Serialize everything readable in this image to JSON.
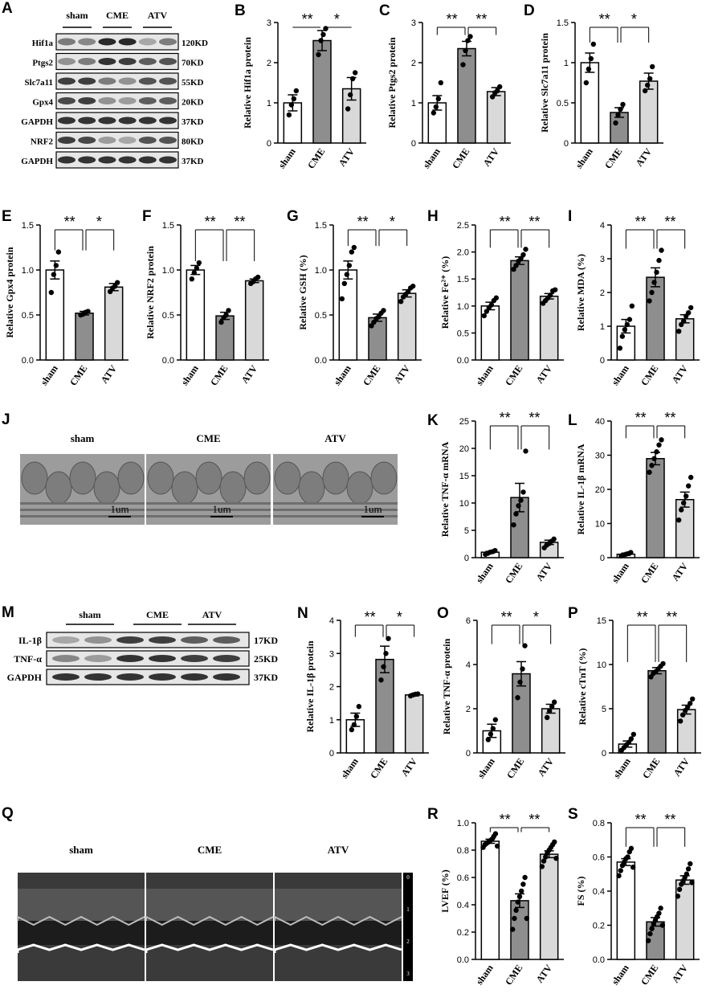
{
  "panels": {
    "A": {
      "letter": "A",
      "groups": [
        "sham",
        "CME",
        "ATV"
      ],
      "bands": [
        {
          "name": "Hif1a",
          "kd": "120KD"
        },
        {
          "name": "Ptgs2",
          "kd": "70KD"
        },
        {
          "name": "Slc7a11",
          "kd": "55KD"
        },
        {
          "name": "Gpx4",
          "kd": "20KD"
        },
        {
          "name": "GAPDH",
          "kd": "37KD"
        },
        {
          "name": "NRF2",
          "kd": "80KD"
        },
        {
          "name": "GAPDH",
          "kd": "37KD"
        }
      ]
    },
    "J": {
      "letter": "J",
      "images": [
        "sham",
        "CME",
        "ATV"
      ],
      "scale": "1um"
    },
    "M": {
      "letter": "M",
      "groups": [
        "sham",
        "CME",
        "ATV"
      ],
      "bands": [
        {
          "name": "IL-1β",
          "kd": "17KD"
        },
        {
          "name": "TNF-α",
          "kd": "25KD"
        },
        {
          "name": "GAPDH",
          "kd": "37KD"
        }
      ]
    },
    "Q": {
      "letter": "Q",
      "images": [
        "sham",
        "CME",
        "ATV"
      ],
      "scale_ticks": [
        "0",
        "1",
        "2",
        "3"
      ]
    }
  },
  "chart_data": [
    {
      "id": "B",
      "letter": "B",
      "type": "bar",
      "categories": [
        "sham",
        "CME",
        "ATV"
      ],
      "values": [
        1.0,
        2.55,
        1.35
      ],
      "errors": [
        0.2,
        0.25,
        0.28
      ],
      "points": [
        [
          0.7,
          0.95,
          1.1,
          1.3
        ],
        [
          2.2,
          2.55,
          2.7,
          2.85
        ],
        [
          0.85,
          1.2,
          1.6,
          1.75
        ]
      ],
      "ylabel": "Relative Hif1a protein",
      "ylim": [
        0,
        3
      ],
      "ticks": [
        0,
        1,
        2,
        3
      ],
      "tick_labels": [
        "0",
        "1",
        "2",
        "3"
      ],
      "sig": [
        {
          "from": 0,
          "to": 1,
          "label": "**"
        },
        {
          "from": 1,
          "to": 2,
          "label": "*"
        }
      ]
    },
    {
      "id": "C",
      "letter": "C",
      "type": "bar",
      "categories": [
        "sham",
        "CME",
        "ATV"
      ],
      "values": [
        1.0,
        2.35,
        1.28
      ],
      "errors": [
        0.18,
        0.18,
        0.1
      ],
      "points": [
        [
          0.75,
          0.9,
          1.1,
          1.5
        ],
        [
          1.95,
          2.3,
          2.55,
          2.65
        ],
        [
          1.15,
          1.25,
          1.3,
          1.4
        ]
      ],
      "ylabel": "Relative Ptgs2 protein",
      "ylim": [
        0,
        3
      ],
      "ticks": [
        0,
        1,
        2,
        3
      ],
      "tick_labels": [
        "0",
        "1",
        "2",
        "3"
      ],
      "sig": [
        {
          "from": 0,
          "to": 1,
          "label": "**"
        },
        {
          "from": 1,
          "to": 2,
          "label": "**"
        }
      ]
    },
    {
      "id": "D",
      "letter": "D",
      "type": "bar",
      "categories": [
        "sham",
        "CME",
        "ATV"
      ],
      "values": [
        1.0,
        0.38,
        0.77
      ],
      "errors": [
        0.12,
        0.06,
        0.1
      ],
      "points": [
        [
          0.75,
          0.92,
          1.05,
          1.23
        ],
        [
          0.25,
          0.35,
          0.42,
          0.48
        ],
        [
          0.65,
          0.72,
          0.8,
          0.95
        ]
      ],
      "ylabel": "Relative Slc7a11 protein",
      "ylim": [
        0,
        1.5
      ],
      "ticks": [
        0,
        0.5,
        1,
        1.5
      ],
      "tick_labels": [
        "0",
        "0.5",
        "1",
        "1.5"
      ],
      "sig": [
        {
          "from": 0,
          "to": 1,
          "label": "**"
        },
        {
          "from": 1,
          "to": 2,
          "label": "*"
        }
      ]
    },
    {
      "id": "E",
      "letter": "E",
      "type": "bar",
      "categories": [
        "sham",
        "CME",
        "ATV"
      ],
      "values": [
        1.0,
        0.52,
        0.81
      ],
      "errors": [
        0.1,
        0.02,
        0.04
      ],
      "points": [
        [
          0.75,
          0.95,
          1.05,
          1.2
        ],
        [
          0.5,
          0.51,
          0.53,
          0.54
        ],
        [
          0.76,
          0.8,
          0.82,
          0.86
        ]
      ],
      "ylabel": "Relative Gpx4 protein",
      "ylim": [
        0,
        1.5
      ],
      "ticks": [
        0,
        0.5,
        1,
        1.5
      ],
      "tick_labels": [
        "0.0",
        "0.5",
        "1.0",
        "1.5"
      ],
      "sig": [
        {
          "from": 0,
          "to": 1,
          "label": "**"
        },
        {
          "from": 1,
          "to": 2,
          "label": "*"
        }
      ]
    },
    {
      "id": "F",
      "letter": "F",
      "type": "bar",
      "categories": [
        "sham",
        "CME",
        "ATV"
      ],
      "values": [
        1.0,
        0.49,
        0.88
      ],
      "errors": [
        0.05,
        0.04,
        0.02
      ],
      "points": [
        [
          0.9,
          0.97,
          1.02,
          1.08
        ],
        [
          0.42,
          0.47,
          0.5,
          0.55
        ],
        [
          0.85,
          0.87,
          0.9,
          0.92
        ]
      ],
      "ylabel": "Relative NRF2 protein",
      "ylim": [
        0,
        1.5
      ],
      "ticks": [
        0,
        0.5,
        1,
        1.5
      ],
      "tick_labels": [
        "0.0",
        "0.5",
        "1.0",
        "1.5"
      ],
      "sig": [
        {
          "from": 0,
          "to": 1,
          "label": "**"
        },
        {
          "from": 1,
          "to": 2,
          "label": "**"
        }
      ]
    },
    {
      "id": "G",
      "letter": "G",
      "type": "bar",
      "categories": [
        "sham",
        "CME",
        "ATV"
      ],
      "values": [
        1.0,
        0.47,
        0.74
      ],
      "errors": [
        0.1,
        0.04,
        0.04
      ],
      "points": [
        [
          0.68,
          0.85,
          0.95,
          1.05,
          1.2,
          1.25
        ],
        [
          0.38,
          0.42,
          0.46,
          0.48,
          0.52,
          0.55
        ],
        [
          0.65,
          0.7,
          0.73,
          0.76,
          0.8,
          0.82
        ]
      ],
      "ylabel": "Relative GSH (%)",
      "ylim": [
        0,
        1.5
      ],
      "ticks": [
        0,
        0.5,
        1,
        1.5
      ],
      "tick_labels": [
        "0.0",
        "0.5",
        "1.0",
        "1.5"
      ],
      "sig": [
        {
          "from": 0,
          "to": 1,
          "label": "**"
        },
        {
          "from": 1,
          "to": 2,
          "label": "*"
        }
      ]
    },
    {
      "id": "H",
      "letter": "H",
      "type": "bar",
      "categories": [
        "sham",
        "CME",
        "ATV"
      ],
      "values": [
        1.0,
        1.84,
        1.18
      ],
      "errors": [
        0.07,
        0.07,
        0.05
      ],
      "points": [
        [
          0.82,
          0.9,
          0.97,
          1.02,
          1.1,
          1.15
        ],
        [
          1.68,
          1.75,
          1.83,
          1.88,
          1.95,
          2.05
        ],
        [
          1.05,
          1.1,
          1.15,
          1.2,
          1.28,
          1.3
        ]
      ],
      "ylabel": "Relative Fe²⁺ (%)",
      "ylim": [
        0,
        2.5
      ],
      "ticks": [
        0,
        0.5,
        1,
        1.5,
        2,
        2.5
      ],
      "tick_labels": [
        "0.0",
        "0.5",
        "1.0",
        "1.5",
        "2.0",
        "2.5"
      ],
      "sig": [
        {
          "from": 0,
          "to": 1,
          "label": "**"
        },
        {
          "from": 1,
          "to": 2,
          "label": "**"
        }
      ]
    },
    {
      "id": "I",
      "letter": "I",
      "type": "bar",
      "categories": [
        "sham",
        "CME",
        "ATV"
      ],
      "values": [
        1.0,
        2.45,
        1.22
      ],
      "errors": [
        0.2,
        0.28,
        0.12
      ],
      "points": [
        [
          0.35,
          0.7,
          0.9,
          1.05,
          1.2,
          1.6
        ],
        [
          1.75,
          2.0,
          2.3,
          2.6,
          2.95,
          3.25
        ],
        [
          0.85,
          1.05,
          1.15,
          1.3,
          1.4,
          1.55
        ]
      ],
      "ylabel": "Relative MDA (%)",
      "ylim": [
        0,
        4
      ],
      "ticks": [
        0,
        1,
        2,
        3,
        4
      ],
      "tick_labels": [
        "0",
        "1",
        "2",
        "3",
        "4"
      ],
      "sig": [
        {
          "from": 0,
          "to": 1,
          "label": "**"
        },
        {
          "from": 1,
          "to": 2,
          "label": "**"
        }
      ]
    },
    {
      "id": "K",
      "letter": "K",
      "type": "bar",
      "categories": [
        "sham",
        "CME",
        "ATV"
      ],
      "values": [
        1.0,
        11.0,
        2.8
      ],
      "errors": [
        0.15,
        2.6,
        0.4
      ],
      "points": [
        [
          0.6,
          0.8,
          1.0,
          1.1,
          1.3
        ],
        [
          6.0,
          8.0,
          9.5,
          10.5,
          12.0,
          19.5
        ],
        [
          1.8,
          2.3,
          2.6,
          3.0,
          3.4
        ]
      ],
      "ylabel": "Relative TNF-α mRNA",
      "ylim": [
        0,
        25
      ],
      "ticks": [
        0,
        5,
        10,
        15,
        20,
        25
      ],
      "tick_labels": [
        "0",
        "5",
        "10",
        "15",
        "20",
        "25"
      ],
      "sig": [
        {
          "from": 0,
          "to": 1,
          "label": "**"
        },
        {
          "from": 1,
          "to": 2,
          "label": "**"
        }
      ]
    },
    {
      "id": "L",
      "letter": "L",
      "type": "bar",
      "categories": [
        "sham",
        "CME",
        "ATV"
      ],
      "values": [
        1.0,
        29.0,
        17.0
      ],
      "errors": [
        0.3,
        1.8,
        2.2
      ],
      "points": [
        [
          0.5,
          0.8,
          1.0,
          1.2,
          1.5
        ],
        [
          25.0,
          27.0,
          29.0,
          31.0,
          33.0,
          34.5
        ],
        [
          11.0,
          14.0,
          16.0,
          18.0,
          21.0,
          23.5
        ]
      ],
      "ylabel": "Relative IL-1β mRNA",
      "ylim": [
        0,
        40
      ],
      "ticks": [
        0,
        10,
        20,
        30,
        40
      ],
      "tick_labels": [
        "0",
        "10",
        "20",
        "30",
        "40"
      ],
      "sig": [
        {
          "from": 0,
          "to": 1,
          "label": "**"
        },
        {
          "from": 1,
          "to": 2,
          "label": "**"
        }
      ]
    },
    {
      "id": "N",
      "letter": "N",
      "type": "bar",
      "categories": [
        "sham",
        "CME",
        "ATV"
      ],
      "values": [
        1.0,
        2.82,
        1.75
      ],
      "errors": [
        0.2,
        0.4,
        0.03
      ],
      "points": [
        [
          0.7,
          0.85,
          1.1,
          1.4
        ],
        [
          2.2,
          2.6,
          3.0,
          3.45
        ],
        [
          1.72,
          1.75,
          1.77,
          1.78
        ]
      ],
      "ylabel": "Relative IL-1β protein",
      "ylim": [
        0,
        4
      ],
      "ticks": [
        0,
        1,
        2,
        3,
        4
      ],
      "tick_labels": [
        "0",
        "1",
        "2",
        "3",
        "4"
      ],
      "sig": [
        {
          "from": 0,
          "to": 1,
          "label": "**"
        },
        {
          "from": 1,
          "to": 2,
          "label": "*"
        }
      ]
    },
    {
      "id": "O",
      "letter": "O",
      "type": "bar",
      "categories": [
        "sham",
        "CME",
        "ATV"
      ],
      "values": [
        1.0,
        3.58,
        2.0
      ],
      "errors": [
        0.3,
        0.55,
        0.2
      ],
      "points": [
        [
          0.6,
          0.85,
          1.1,
          1.5
        ],
        [
          2.5,
          3.2,
          3.8,
          4.85
        ],
        [
          1.6,
          1.9,
          2.1,
          2.3
        ]
      ],
      "ylabel": "Relative TNF-α protein",
      "ylim": [
        0,
        6
      ],
      "ticks": [
        0,
        2,
        4,
        6
      ],
      "tick_labels": [
        "0",
        "2",
        "4",
        "6"
      ],
      "sig": [
        {
          "from": 0,
          "to": 1,
          "label": "**"
        },
        {
          "from": 1,
          "to": 2,
          "label": "*"
        }
      ]
    },
    {
      "id": "P",
      "letter": "P",
      "type": "bar",
      "categories": [
        "sham",
        "CME",
        "ATV"
      ],
      "values": [
        1.0,
        9.3,
        4.9
      ],
      "errors": [
        0.35,
        0.35,
        0.5
      ],
      "points": [
        [
          0.3,
          0.6,
          0.9,
          1.2,
          1.6,
          2.1
        ],
        [
          8.6,
          9.0,
          9.2,
          9.5,
          9.8,
          10.1
        ],
        [
          3.6,
          4.3,
          4.8,
          5.2,
          5.6,
          6.1
        ]
      ],
      "ylabel": "Relative cTnT (%)",
      "ylim": [
        0,
        15
      ],
      "ticks": [
        0,
        5,
        10,
        15
      ],
      "tick_labels": [
        "0",
        "5",
        "10",
        "15"
      ],
      "sig": [
        {
          "from": 0,
          "to": 1,
          "label": "**"
        },
        {
          "from": 1,
          "to": 2,
          "label": "**"
        }
      ]
    },
    {
      "id": "R",
      "letter": "R",
      "type": "bar",
      "categories": [
        "sham",
        "CME",
        "ATV"
      ],
      "values": [
        0.865,
        0.43,
        0.77
      ],
      "errors": [
        0.015,
        0.05,
        0.025
      ],
      "points": [
        [
          0.82,
          0.84,
          0.85,
          0.86,
          0.87,
          0.88,
          0.9,
          0.92,
          0.83
        ],
        [
          0.22,
          0.3,
          0.36,
          0.42,
          0.46,
          0.5,
          0.55,
          0.6,
          0.3
        ],
        [
          0.68,
          0.72,
          0.75,
          0.78,
          0.8,
          0.82,
          0.84,
          0.86,
          0.74
        ]
      ],
      "ylabel": "LVEF (%)",
      "ylim": [
        0,
        1.0
      ],
      "ticks": [
        0,
        0.2,
        0.4,
        0.6,
        0.8,
        1.0
      ],
      "tick_labels": [
        "0.0",
        "0.2",
        "0.4",
        "0.6",
        "0.8",
        "1.0"
      ],
      "sig": [
        {
          "from": 0,
          "to": 1,
          "label": "**"
        },
        {
          "from": 1,
          "to": 2,
          "label": "**"
        }
      ]
    },
    {
      "id": "S",
      "letter": "S",
      "type": "bar",
      "categories": [
        "sham",
        "CME",
        "ATV"
      ],
      "values": [
        0.57,
        0.22,
        0.465
      ],
      "errors": [
        0.02,
        0.025,
        0.025
      ],
      "points": [
        [
          0.49,
          0.52,
          0.55,
          0.57,
          0.59,
          0.6,
          0.63,
          0.65,
          0.54
        ],
        [
          0.11,
          0.15,
          0.18,
          0.21,
          0.23,
          0.25,
          0.27,
          0.3,
          0.2
        ],
        [
          0.37,
          0.41,
          0.44,
          0.46,
          0.48,
          0.5,
          0.53,
          0.56,
          0.45
        ]
      ],
      "ylabel": "FS (%)",
      "ylim": [
        0,
        0.8
      ],
      "ticks": [
        0,
        0.2,
        0.4,
        0.6,
        0.8
      ],
      "tick_labels": [
        "0.0",
        "0.2",
        "0.4",
        "0.6",
        "0.8"
      ],
      "sig": [
        {
          "from": 0,
          "to": 1,
          "label": "**"
        },
        {
          "from": 1,
          "to": 2,
          "label": "**"
        }
      ]
    }
  ],
  "colors": {
    "sham": "#ffffff",
    "CME": "#8e8e8e",
    "ATV": "#d9d9d9",
    "ink": "#000000"
  }
}
